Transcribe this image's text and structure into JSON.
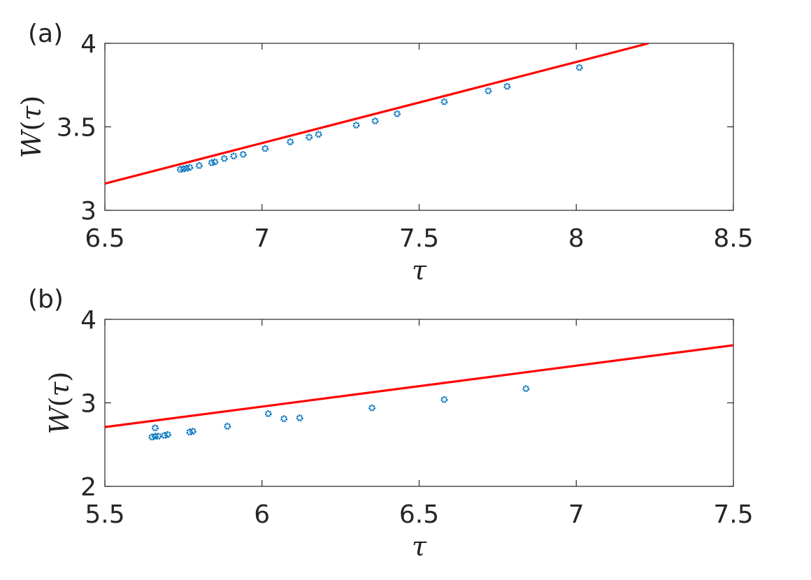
{
  "chart_data": [
    {
      "panel": "(a)",
      "type": "scatter",
      "xlabel_var": "τ",
      "ylabel_func": "W",
      "ylabel_arg": "τ",
      "xlim": [
        6.5,
        8.5
      ],
      "ylim": [
        3,
        4
      ],
      "xticks": [
        "6.5",
        "7",
        "7.5",
        "8",
        "8.5"
      ],
      "yticks": [
        "3",
        "3.5",
        "4"
      ],
      "grid": false,
      "colors": {
        "points": "#0072BD",
        "line": "#FF0000"
      },
      "series": [
        {
          "kind": "points",
          "x": [
            6.74,
            6.75,
            6.76,
            6.77,
            6.8,
            6.84,
            6.85,
            6.88,
            6.91,
            6.94,
            7.01,
            7.09,
            7.15,
            7.18,
            7.3,
            7.36,
            7.43,
            7.58,
            7.72,
            7.78,
            8.01
          ],
          "y": [
            3.245,
            3.248,
            3.252,
            3.257,
            3.268,
            3.285,
            3.29,
            3.31,
            3.325,
            3.335,
            3.37,
            3.41,
            3.438,
            3.455,
            3.51,
            3.535,
            3.578,
            3.65,
            3.715,
            3.742,
            3.855
          ]
        },
        {
          "kind": "line",
          "x": [
            6.5,
            8.23
          ],
          "y": [
            3.16,
            4.0
          ]
        }
      ]
    },
    {
      "panel": "(b)",
      "type": "scatter",
      "xlabel_var": "τ",
      "ylabel_func": "W",
      "ylabel_arg": "τ",
      "xlim": [
        5.5,
        7.5
      ],
      "ylim": [
        2,
        4
      ],
      "xticks": [
        "5.5",
        "6",
        "6.5",
        "7",
        "7.5"
      ],
      "yticks": [
        "2",
        "3",
        "4"
      ],
      "grid": false,
      "colors": {
        "points": "#0072BD",
        "line": "#FF0000"
      },
      "series": [
        {
          "kind": "points",
          "x": [
            5.65,
            5.66,
            5.67,
            5.66,
            5.69,
            5.7,
            5.77,
            5.78,
            5.89,
            6.02,
            6.07,
            6.12,
            6.35,
            6.58,
            6.84
          ],
          "y": [
            2.59,
            2.6,
            2.6,
            2.7,
            2.61,
            2.62,
            2.65,
            2.66,
            2.72,
            2.87,
            2.81,
            2.82,
            2.94,
            3.04,
            3.17
          ]
        },
        {
          "kind": "line",
          "x": [
            5.5,
            7.5
          ],
          "y": [
            2.71,
            3.69
          ]
        }
      ]
    }
  ]
}
